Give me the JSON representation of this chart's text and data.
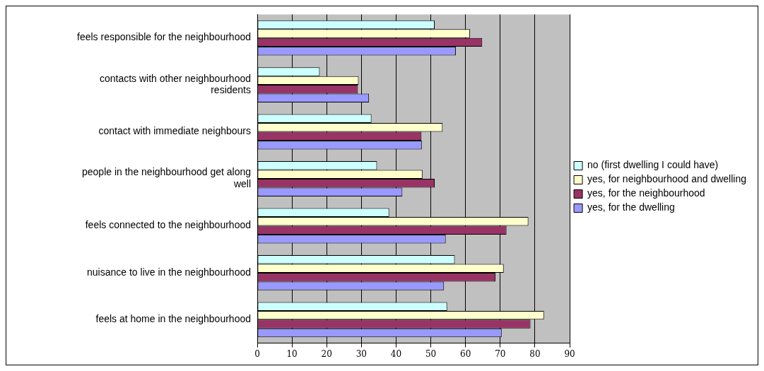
{
  "chart_data": {
    "type": "bar",
    "orientation": "horizontal",
    "categories": [
      "feels responsible for the neighbourhood",
      "contacts with other neighbourhood residents",
      "contact with immediate neighbours",
      "people in the neighbourhood get along well",
      "feels connected to the neighbourhood",
      "nuisance to live in the neighbourhood",
      "feels at home in the neighbourhood"
    ],
    "series": [
      {
        "name": "no (first dwelling I could have)",
        "color": "#ccffff",
        "values": [
          51.1,
          18,
          32.9,
          34.5,
          38,
          56.9,
          54.7
        ]
      },
      {
        "name": "yes, for neighbourhood and dwelling",
        "color": "#ffffcc",
        "values": [
          61.3,
          29.2,
          53.4,
          47.6,
          78.1,
          71,
          82.6
        ]
      },
      {
        "name": "yes, for the neighbourhood",
        "color": "#993366",
        "values": [
          64.8,
          29,
          47.3,
          51.1,
          71.8,
          68.6,
          78.7
        ]
      },
      {
        "name": "yes, for the dwelling",
        "color": "#9999ff",
        "values": [
          57.2,
          32.2,
          47.4,
          41.8,
          54.3,
          53.8,
          70.4
        ]
      }
    ],
    "xlim": [
      0,
      90
    ],
    "xticks": [
      0,
      10,
      20,
      30,
      40,
      50,
      60,
      70,
      80,
      90
    ],
    "grid": "x",
    "legend": "right"
  }
}
